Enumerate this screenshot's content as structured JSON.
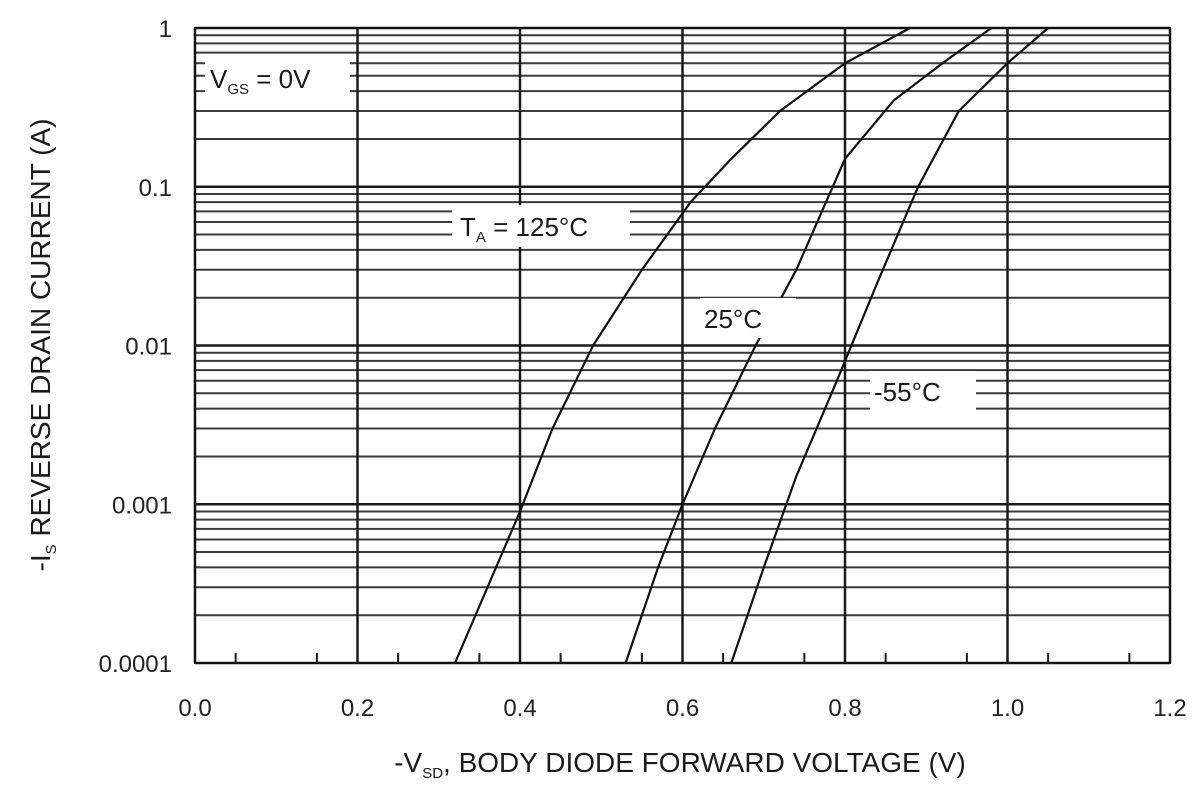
{
  "chart_data": {
    "type": "line",
    "xlabel_main": "-V",
    "xlabel_sub": "SD",
    "xlabel_rest": ", BODY DIODE FORWARD VOLTAGE (V)",
    "ylabel_main": "-I",
    "ylabel_sub": "S",
    "ylabel_rest": " REVERSE DRAIN CURRENT (A)",
    "xlim": [
      0.0,
      1.2
    ],
    "ylim": [
      0.0001,
      1
    ],
    "y_scale": "log",
    "grid": true,
    "x_ticks": [
      "0.0",
      "0.2",
      "0.4",
      "0.6",
      "0.8",
      "1.0",
      "1.2"
    ],
    "x_tick_values": [
      0.0,
      0.2,
      0.4,
      0.6,
      0.8,
      1.0,
      1.2
    ],
    "y_ticks": [
      "0.0001",
      "0.001",
      "0.01",
      "0.1",
      "1"
    ],
    "y_tick_values": [
      0.0001,
      0.001,
      0.01,
      0.1,
      1
    ],
    "condition_main": "V",
    "condition_sub": "GS",
    "condition_rest": " = 0V",
    "series": [
      {
        "name": "T_A = 125°C",
        "x": [
          0.32,
          0.36,
          0.4,
          0.44,
          0.49,
          0.55,
          0.61,
          0.66,
          0.72,
          0.8,
          0.88
        ],
        "y": [
          0.0001,
          0.0003,
          0.0009,
          0.003,
          0.01,
          0.03,
          0.08,
          0.15,
          0.3,
          0.6,
          1
        ]
      },
      {
        "name": "25°C",
        "x": [
          0.53,
          0.57,
          0.6,
          0.64,
          0.69,
          0.74,
          0.8,
          0.86,
          0.92,
          0.98
        ],
        "y": [
          0.0001,
          0.0004,
          0.001,
          0.003,
          0.01,
          0.03,
          0.15,
          0.35,
          0.6,
          1
        ]
      },
      {
        "name": "-55°C",
        "x": [
          0.66,
          0.7,
          0.74,
          0.79,
          0.84,
          0.89,
          0.94,
          1.0,
          1.05
        ],
        "y": [
          0.0001,
          0.0004,
          0.0015,
          0.006,
          0.025,
          0.1,
          0.3,
          0.6,
          1
        ]
      }
    ],
    "annotations": {
      "ta_prefix": "T",
      "ta_sub": "A",
      "ta_rest": " = 125°C",
      "label_25": "25°C",
      "label_m55": "-55°C"
    }
  }
}
